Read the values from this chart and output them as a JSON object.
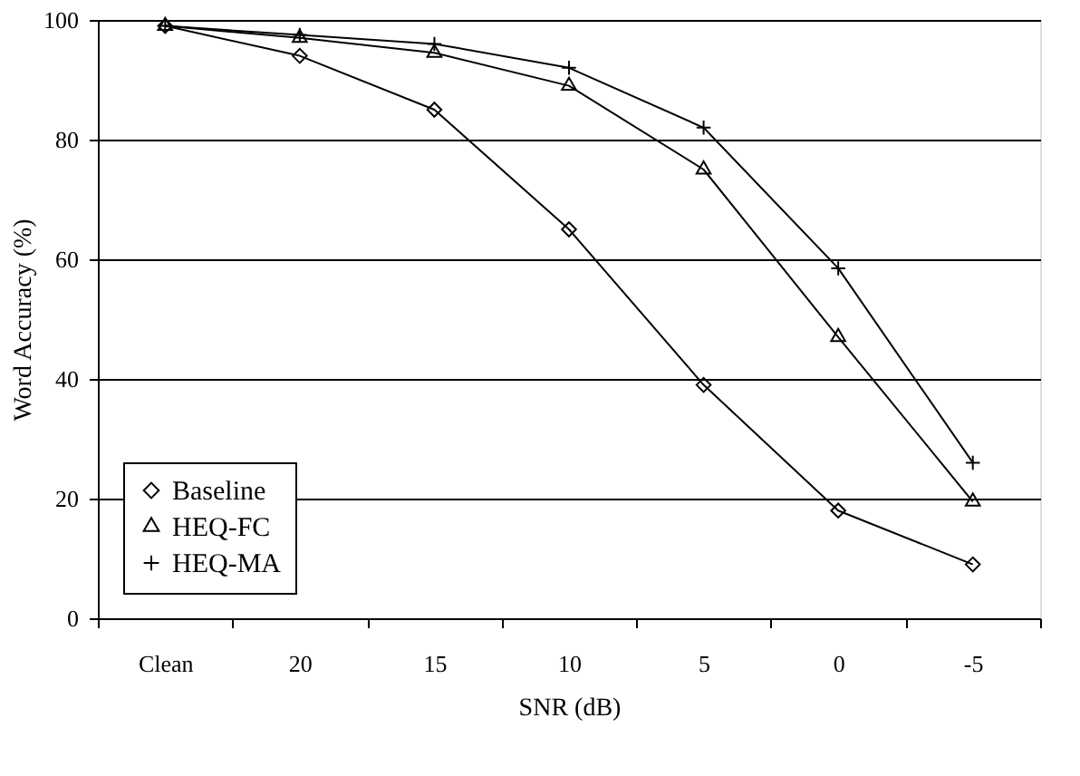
{
  "chart_data": {
    "type": "line",
    "xlabel": "SNR (dB)",
    "ylabel": "Word Accuracy (%)",
    "categories": [
      "Clean",
      "20",
      "15",
      "10",
      "5",
      "0",
      "-5"
    ],
    "series": [
      {
        "name": "Baseline",
        "color": "#000000",
        "marker": "diamond",
        "values": [
          99,
          94,
          85,
          65,
          39,
          18,
          9
        ]
      },
      {
        "name": "HEQ-FC",
        "color": "#010101",
        "marker": "triangle",
        "values": [
          99,
          97,
          94.5,
          89,
          75,
          47,
          19.5
        ]
      },
      {
        "name": "HEQ-MA",
        "color": "#020202",
        "marker": "cross",
        "values": [
          99,
          97.5,
          96,
          92,
          82,
          58.5,
          26
        ]
      }
    ],
    "ylim": [
      0,
      100
    ],
    "yticks": [
      0,
      20,
      40,
      60,
      80,
      100
    ],
    "grid": "y",
    "legend": "bottom left",
    "line_style": "solid"
  }
}
